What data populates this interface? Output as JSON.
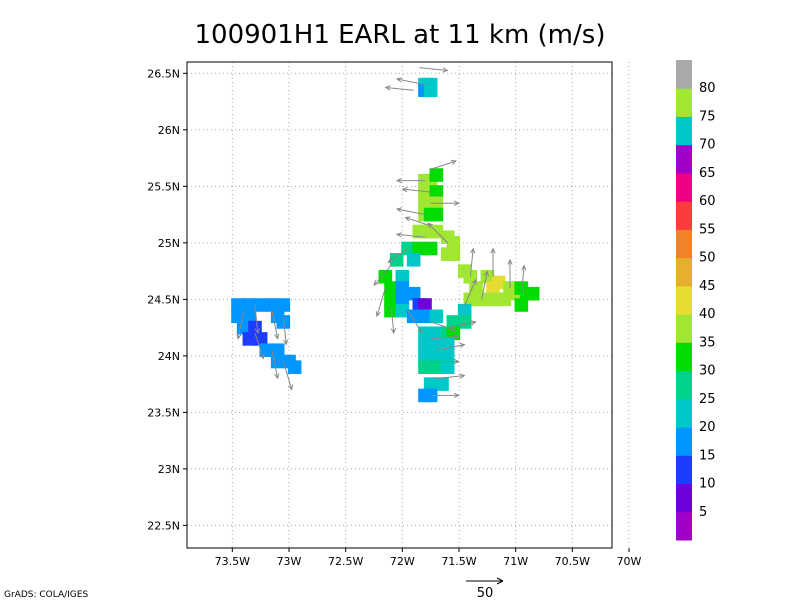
{
  "chart_data": {
    "type": "heatmap",
    "title": "100901H1 EARL at 11 km (m/s)",
    "x_ticks": [
      {
        "lon": -73.5,
        "label": "73.5W"
      },
      {
        "lon": -73.0,
        "label": "73W"
      },
      {
        "lon": -72.5,
        "label": "72.5W"
      },
      {
        "lon": -72.0,
        "label": "72W"
      },
      {
        "lon": -71.5,
        "label": "71.5W"
      },
      {
        "lon": -71.0,
        "label": "71W"
      },
      {
        "lon": -70.5,
        "label": "70.5W"
      },
      {
        "lon": -70.0,
        "label": "70W"
      }
    ],
    "y_ticks": [
      {
        "lat": 26.5,
        "label": "26.5N"
      },
      {
        "lat": 26.0,
        "label": "26N"
      },
      {
        "lat": 25.5,
        "label": "25.5N"
      },
      {
        "lat": 25.0,
        "label": "25N"
      },
      {
        "lat": 24.5,
        "label": "24.5N"
      },
      {
        "lat": 24.0,
        "label": "24N"
      },
      {
        "lat": 23.5,
        "label": "23.5N"
      },
      {
        "lat": 23.0,
        "label": "23N"
      },
      {
        "lat": 22.5,
        "label": "22.5N"
      }
    ],
    "xlim": [
      -73.9,
      -70.15
    ],
    "ylim": [
      22.3,
      26.6
    ],
    "grid": true,
    "colorbar": {
      "placement": "right",
      "colors": [
        "#a000c8",
        "#6e00dc",
        "#1e3cff",
        "#0096ff",
        "#00c8c8",
        "#00d28c",
        "#00dc00",
        "#a0e632",
        "#e6dc32",
        "#e6af2d",
        "#f08228",
        "#fa3c3c",
        "#f00082",
        "#a000c8",
        "#00c8c8",
        "#a0e632",
        "#aaaaaa"
      ],
      "labels": [
        "5",
        "10",
        "15",
        "20",
        "25",
        "30",
        "35",
        "40",
        "45",
        "50",
        "55",
        "60",
        "65",
        "70",
        "75",
        "80"
      ]
    },
    "cells": [
      {
        "lon": -71.8,
        "lat": 26.4,
        "v": 25
      },
      {
        "lon": -71.75,
        "lat": 26.4,
        "v": 25
      },
      {
        "lon": -71.8,
        "lat": 26.35,
        "v": 20
      },
      {
        "lon": -71.75,
        "lat": 26.35,
        "v": 25
      },
      {
        "lon": -71.8,
        "lat": 25.55,
        "v": 40
      },
      {
        "lon": -71.75,
        "lat": 25.55,
        "v": 40
      },
      {
        "lon": -71.7,
        "lat": 25.6,
        "v": 35
      },
      {
        "lon": -71.8,
        "lat": 25.45,
        "v": 40
      },
      {
        "lon": -71.75,
        "lat": 25.45,
        "v": 40
      },
      {
        "lon": -71.7,
        "lat": 25.45,
        "v": 35
      },
      {
        "lon": -71.8,
        "lat": 25.35,
        "v": 40
      },
      {
        "lon": -71.75,
        "lat": 25.35,
        "v": 40
      },
      {
        "lon": -71.7,
        "lat": 25.35,
        "v": 40
      },
      {
        "lon": -71.8,
        "lat": 25.25,
        "v": 40
      },
      {
        "lon": -71.75,
        "lat": 25.25,
        "v": 35
      },
      {
        "lon": -71.7,
        "lat": 25.25,
        "v": 35
      },
      {
        "lon": -71.85,
        "lat": 25.1,
        "v": 40
      },
      {
        "lon": -71.8,
        "lat": 25.1,
        "v": 40
      },
      {
        "lon": -71.75,
        "lat": 25.1,
        "v": 40
      },
      {
        "lon": -71.7,
        "lat": 25.1,
        "v": 40
      },
      {
        "lon": -71.6,
        "lat": 25.05,
        "v": 40
      },
      {
        "lon": -71.55,
        "lat": 25.0,
        "v": 40
      },
      {
        "lon": -71.95,
        "lat": 24.95,
        "v": 30
      },
      {
        "lon": -71.85,
        "lat": 24.95,
        "v": 35
      },
      {
        "lon": -71.75,
        "lat": 24.95,
        "v": 35
      },
      {
        "lon": -71.6,
        "lat": 24.9,
        "v": 40
      },
      {
        "lon": -71.55,
        "lat": 24.9,
        "v": 40
      },
      {
        "lon": -72.05,
        "lat": 24.85,
        "v": 30
      },
      {
        "lon": -71.9,
        "lat": 24.85,
        "v": 25
      },
      {
        "lon": -72.15,
        "lat": 24.7,
        "v": 35
      },
      {
        "lon": -72.1,
        "lat": 24.6,
        "v": 35
      },
      {
        "lon": -72.1,
        "lat": 24.5,
        "v": 35
      },
      {
        "lon": -72.1,
        "lat": 24.4,
        "v": 35
      },
      {
        "lon": -72.0,
        "lat": 24.7,
        "v": 25
      },
      {
        "lon": -72.0,
        "lat": 24.6,
        "v": 20
      },
      {
        "lon": -72.0,
        "lat": 24.5,
        "v": 20
      },
      {
        "lon": -72.0,
        "lat": 24.4,
        "v": 25
      },
      {
        "lon": -71.9,
        "lat": 24.55,
        "v": 20
      },
      {
        "lon": -71.85,
        "lat": 24.45,
        "v": 15
      },
      {
        "lon": -71.8,
        "lat": 24.45,
        "v": 10
      },
      {
        "lon": -71.9,
        "lat": 24.35,
        "v": 20
      },
      {
        "lon": -71.8,
        "lat": 24.35,
        "v": 20
      },
      {
        "lon": -71.7,
        "lat": 24.35,
        "v": 25
      },
      {
        "lon": -71.45,
        "lat": 24.75,
        "v": 40
      },
      {
        "lon": -71.4,
        "lat": 24.7,
        "v": 40
      },
      {
        "lon": -71.35,
        "lat": 24.6,
        "v": 40
      },
      {
        "lon": -71.25,
        "lat": 24.7,
        "v": 40
      },
      {
        "lon": -71.2,
        "lat": 24.6,
        "v": 45
      },
      {
        "lon": -71.15,
        "lat": 24.65,
        "v": 45
      },
      {
        "lon": -71.05,
        "lat": 24.6,
        "v": 40
      },
      {
        "lon": -71.0,
        "lat": 24.55,
        "v": 40
      },
      {
        "lon": -71.4,
        "lat": 24.5,
        "v": 40
      },
      {
        "lon": -71.3,
        "lat": 24.5,
        "v": 40
      },
      {
        "lon": -71.2,
        "lat": 24.5,
        "v": 40
      },
      {
        "lon": -71.1,
        "lat": 24.5,
        "v": 40
      },
      {
        "lon": -70.95,
        "lat": 24.6,
        "v": 35
      },
      {
        "lon": -70.9,
        "lat": 24.55,
        "v": 35
      },
      {
        "lon": -70.85,
        "lat": 24.55,
        "v": 35
      },
      {
        "lon": -70.95,
        "lat": 24.45,
        "v": 35
      },
      {
        "lon": -71.45,
        "lat": 24.4,
        "v": 25
      },
      {
        "lon": -71.45,
        "lat": 24.3,
        "v": 30
      },
      {
        "lon": -71.55,
        "lat": 24.3,
        "v": 30
      },
      {
        "lon": -71.8,
        "lat": 24.2,
        "v": 25
      },
      {
        "lon": -71.7,
        "lat": 24.2,
        "v": 25
      },
      {
        "lon": -71.6,
        "lat": 24.2,
        "v": 30
      },
      {
        "lon": -71.55,
        "lat": 24.2,
        "v": 35
      },
      {
        "lon": -71.8,
        "lat": 24.1,
        "v": 25
      },
      {
        "lon": -71.7,
        "lat": 24.1,
        "v": 25
      },
      {
        "lon": -71.6,
        "lat": 24.1,
        "v": 25
      },
      {
        "lon": -71.8,
        "lat": 24.0,
        "v": 25
      },
      {
        "lon": -71.7,
        "lat": 24.0,
        "v": 25
      },
      {
        "lon": -71.6,
        "lat": 24.0,
        "v": 25
      },
      {
        "lon": -71.8,
        "lat": 23.9,
        "v": 30
      },
      {
        "lon": -71.7,
        "lat": 23.9,
        "v": 30
      },
      {
        "lon": -71.6,
        "lat": 23.9,
        "v": 25
      },
      {
        "lon": -71.75,
        "lat": 23.75,
        "v": 25
      },
      {
        "lon": -71.65,
        "lat": 23.75,
        "v": 25
      },
      {
        "lon": -71.8,
        "lat": 23.65,
        "v": 20
      },
      {
        "lon": -71.75,
        "lat": 23.65,
        "v": 20
      },
      {
        "lon": -73.45,
        "lat": 24.45,
        "v": 20
      },
      {
        "lon": -73.35,
        "lat": 24.45,
        "v": 20
      },
      {
        "lon": -73.25,
        "lat": 24.45,
        "v": 20
      },
      {
        "lon": -73.15,
        "lat": 24.45,
        "v": 20
      },
      {
        "lon": -73.05,
        "lat": 24.45,
        "v": 20
      },
      {
        "lon": -73.45,
        "lat": 24.35,
        "v": 20
      },
      {
        "lon": -73.35,
        "lat": 24.35,
        "v": 20
      },
      {
        "lon": -73.1,
        "lat": 24.35,
        "v": 20
      },
      {
        "lon": -73.4,
        "lat": 24.25,
        "v": 20
      },
      {
        "lon": -73.3,
        "lat": 24.25,
        "v": 15
      },
      {
        "lon": -73.05,
        "lat": 24.3,
        "v": 20
      },
      {
        "lon": -73.35,
        "lat": 24.15,
        "v": 15
      },
      {
        "lon": -73.25,
        "lat": 24.15,
        "v": 15
      },
      {
        "lon": -73.2,
        "lat": 24.05,
        "v": 20
      },
      {
        "lon": -73.1,
        "lat": 24.05,
        "v": 20
      },
      {
        "lon": -73.1,
        "lat": 23.95,
        "v": 20
      },
      {
        "lon": -73.0,
        "lat": 23.95,
        "v": 20
      },
      {
        "lon": -72.95,
        "lat": 23.9,
        "v": 20
      }
    ],
    "vectors": [
      {
        "lon": -71.85,
        "lat": 26.55,
        "u": 1.0,
        "v": -0.1
      },
      {
        "lon": -71.8,
        "lat": 26.4,
        "u": -1.0,
        "v": 0.2
      },
      {
        "lon": -71.9,
        "lat": 26.35,
        "u": -1.0,
        "v": 0.1
      },
      {
        "lon": -71.75,
        "lat": 25.65,
        "u": 0.9,
        "v": 0.3
      },
      {
        "lon": -71.8,
        "lat": 25.55,
        "u": -1.0,
        "v": 0.0
      },
      {
        "lon": -71.75,
        "lat": 25.45,
        "u": -1.0,
        "v": 0.1
      },
      {
        "lon": -71.75,
        "lat": 25.35,
        "u": 1.0,
        "v": 0.0
      },
      {
        "lon": -71.8,
        "lat": 25.25,
        "u": -1.0,
        "v": 0.2
      },
      {
        "lon": -71.75,
        "lat": 25.15,
        "u": -0.9,
        "v": 0.3
      },
      {
        "lon": -71.8,
        "lat": 25.05,
        "u": -1.0,
        "v": 0.1
      },
      {
        "lon": -71.6,
        "lat": 25.0,
        "u": -0.7,
        "v": 0.7
      },
      {
        "lon": -71.95,
        "lat": 24.95,
        "u": -0.7,
        "v": -0.5
      },
      {
        "lon": -72.1,
        "lat": 24.8,
        "u": -0.6,
        "v": -0.7
      },
      {
        "lon": -72.15,
        "lat": 24.6,
        "u": -0.3,
        "v": -1.0
      },
      {
        "lon": -72.1,
        "lat": 24.45,
        "u": 0.1,
        "v": -1.0
      },
      {
        "lon": -71.95,
        "lat": 24.4,
        "u": 0.5,
        "v": -0.8
      },
      {
        "lon": -71.75,
        "lat": 24.3,
        "u": 0.9,
        "v": -0.3
      },
      {
        "lon": -71.6,
        "lat": 24.25,
        "u": 1.0,
        "v": 0.2
      },
      {
        "lon": -71.45,
        "lat": 24.45,
        "u": 0.4,
        "v": 0.9
      },
      {
        "lon": -71.4,
        "lat": 24.7,
        "u": 0.1,
        "v": 1.0
      },
      {
        "lon": -71.2,
        "lat": 24.7,
        "u": 0.0,
        "v": 1.0
      },
      {
        "lon": -71.05,
        "lat": 24.6,
        "u": 0.0,
        "v": 1.0
      },
      {
        "lon": -70.95,
        "lat": 24.55,
        "u": 0.1,
        "v": 1.0
      },
      {
        "lon": -71.3,
        "lat": 24.5,
        "u": 0.2,
        "v": 1.0
      },
      {
        "lon": -71.75,
        "lat": 24.15,
        "u": 1.0,
        "v": 0.1
      },
      {
        "lon": -71.7,
        "lat": 24.05,
        "u": 1.0,
        "v": 0.2
      },
      {
        "lon": -71.75,
        "lat": 23.95,
        "u": 1.0,
        "v": 0.0
      },
      {
        "lon": -71.7,
        "lat": 23.8,
        "u": 1.0,
        "v": 0.1
      },
      {
        "lon": -71.75,
        "lat": 23.65,
        "u": 1.0,
        "v": 0.0
      },
      {
        "lon": -73.4,
        "lat": 24.4,
        "u": -0.2,
        "v": -1.0
      },
      {
        "lon": -73.3,
        "lat": 24.45,
        "u": 0.1,
        "v": -1.0
      },
      {
        "lon": -73.15,
        "lat": 24.4,
        "u": 0.2,
        "v": -1.0
      },
      {
        "lon": -73.05,
        "lat": 24.35,
        "u": 0.1,
        "v": -1.0
      },
      {
        "lon": -73.3,
        "lat": 24.2,
        "u": 0.3,
        "v": -0.9
      },
      {
        "lon": -73.15,
        "lat": 24.05,
        "u": 0.2,
        "v": -1.0
      },
      {
        "lon": -73.05,
        "lat": 23.95,
        "u": 0.3,
        "v": -1.0
      }
    ],
    "reference_vector": {
      "label": "50"
    }
  },
  "footer": {
    "credit": "GrADS: COLA/IGES"
  }
}
